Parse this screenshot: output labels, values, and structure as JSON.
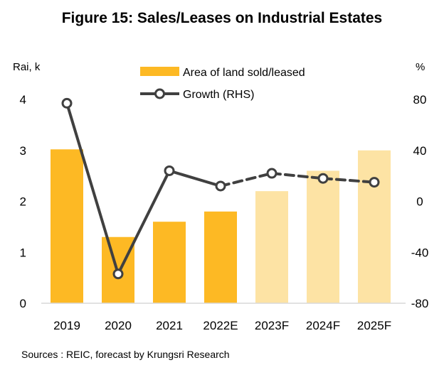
{
  "title": "Figure 15: Sales/Leases on Industrial Estates",
  "source": "Sources : REIC, forecast by Krungsri Research",
  "colors": {
    "actual_bar": "#FDB924",
    "forecast_bar": "#FDE3A4",
    "growth_line": "#404040",
    "marker_fill": "#ffffff"
  },
  "chart_data": {
    "type": "bar",
    "title": "Figure 15: Sales/Leases on Industrial Estates",
    "categories": [
      "2019",
      "2020",
      "2021",
      "2022E",
      "2023F",
      "2024F",
      "2025F"
    ],
    "forecast_from_index": 4,
    "left_axis": {
      "unit": "Rai, k",
      "ylim": [
        0,
        4
      ],
      "ticks": [
        "0",
        "1",
        "2",
        "3",
        "4"
      ]
    },
    "right_axis": {
      "unit": "%",
      "ylim": [
        -80,
        80
      ],
      "ticks": [
        "-80",
        "-40",
        "0",
        "40",
        "80"
      ]
    },
    "series": [
      {
        "name": "Area of land sold/leased",
        "type": "bar",
        "axis": "left",
        "values": [
          3.02,
          1.3,
          1.6,
          1.8,
          2.2,
          2.6,
          3.0
        ]
      },
      {
        "name": "Growth (RHS)",
        "type": "line",
        "axis": "right",
        "values": [
          77,
          -57,
          24,
          12,
          22,
          18,
          15
        ],
        "dashed_from_index": 3
      }
    ],
    "grid": false,
    "legend_position": "top-center"
  }
}
